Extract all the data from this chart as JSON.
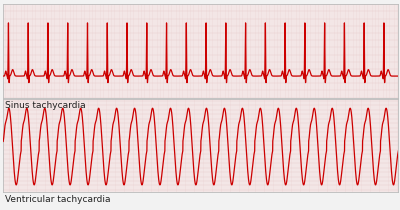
{
  "fig_width": 4.0,
  "fig_height": 2.1,
  "dpi": 100,
  "outer_bg": "#f2f2f2",
  "panel_bg": "#f7eeee",
  "grid_minor_color": "#e8cccc",
  "grid_major_color": "#d4a0a0",
  "ecg_color": "#cc0000",
  "ecg_linewidth": 0.9,
  "label1": "Sinus tachycardia",
  "label2": "Ventricular tachycardia",
  "label_fontsize": 6.5,
  "panel_border_color": "#bbbbbb",
  "panel1_ylim": [
    -0.3,
    1.0
  ],
  "panel2_ylim": [
    -1.05,
    1.05
  ]
}
